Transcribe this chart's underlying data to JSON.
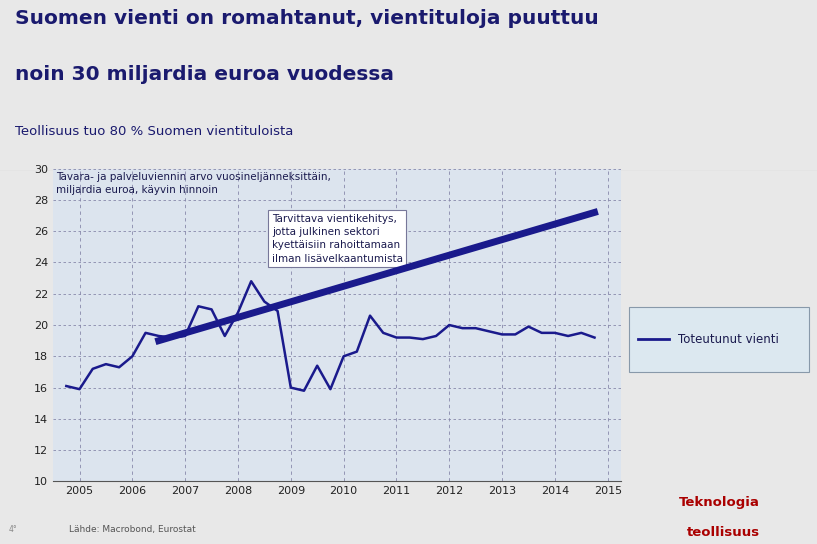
{
  "title_line1": "Suomen vienti on romahtanut, vientituloja puuttuu",
  "title_line2": "noin 30 miljardia euroa vuodessa",
  "subtitle": "Teollisuus tuo 80 % Suomen vientituloista",
  "chart_note": "Tavara- ja palveluviennin arvo vuosineljänneksittäin,\nmiljardia euroa, käyvin hinnoin",
  "annotation_text": "Tarvittava vientikehitys,\njotta julkinen sektori\nkyettäisiin rahoittamaan\nilman lisävelkaantumista",
  "source_text": "Lähde: Macrobond, Eurostat",
  "legend_label": "Toteutunut vienti",
  "logo_text1": "Teknologia",
  "logo_text2": "teollisuus",
  "line_color": "#1a1a8c",
  "trend_color": "#1a1a8c",
  "title_color": "#1a1a6e",
  "background_color": "#e8e8e8",
  "header_bg": "#ffffff",
  "chart_bg": "#dce4ee",
  "grid_color": "#8888aa",
  "logo_color": "#aa0000",
  "ylim": [
    10,
    30
  ],
  "yticks": [
    10,
    12,
    14,
    16,
    18,
    20,
    22,
    24,
    26,
    28,
    30
  ],
  "xlim_start": 2004.5,
  "xlim_end": 2015.25,
  "actual_x": [
    2004.75,
    2005.0,
    2005.25,
    2005.5,
    2005.75,
    2006.0,
    2006.25,
    2006.5,
    2006.75,
    2007.0,
    2007.25,
    2007.5,
    2007.75,
    2008.0,
    2008.25,
    2008.5,
    2008.75,
    2009.0,
    2009.25,
    2009.5,
    2009.75,
    2010.0,
    2010.25,
    2010.5,
    2010.75,
    2011.0,
    2011.25,
    2011.5,
    2011.75,
    2012.0,
    2012.25,
    2012.5,
    2012.75,
    2013.0,
    2013.25,
    2013.5,
    2013.75,
    2014.0,
    2014.25,
    2014.5,
    2014.75
  ],
  "actual_y": [
    16.1,
    15.9,
    17.2,
    17.5,
    17.3,
    18.0,
    19.5,
    19.3,
    19.2,
    19.3,
    21.2,
    21.0,
    19.3,
    20.8,
    22.8,
    21.5,
    20.9,
    16.0,
    15.8,
    17.4,
    15.9,
    18.0,
    18.3,
    20.6,
    19.5,
    19.2,
    19.2,
    19.1,
    19.3,
    20.0,
    19.8,
    19.8,
    19.6,
    19.4,
    19.4,
    19.9,
    19.5,
    19.5,
    19.3,
    19.5,
    19.2
  ],
  "trend_x": [
    2006.5,
    2014.75
  ],
  "trend_y": [
    19.0,
    27.2
  ],
  "xtick_positions": [
    2005,
    2006,
    2007,
    2008,
    2009,
    2010,
    2011,
    2012,
    2013,
    2014,
    2015
  ],
  "xtick_labels": [
    "2005",
    "2006",
    "2007",
    "2008",
    "2009",
    "2010",
    "2011",
    "2012",
    "2013",
    "2014",
    "2015"
  ],
  "vline_positions": [
    2005,
    2006,
    2007,
    2008,
    2009,
    2010,
    2011,
    2012,
    2013,
    2014,
    2015
  ]
}
